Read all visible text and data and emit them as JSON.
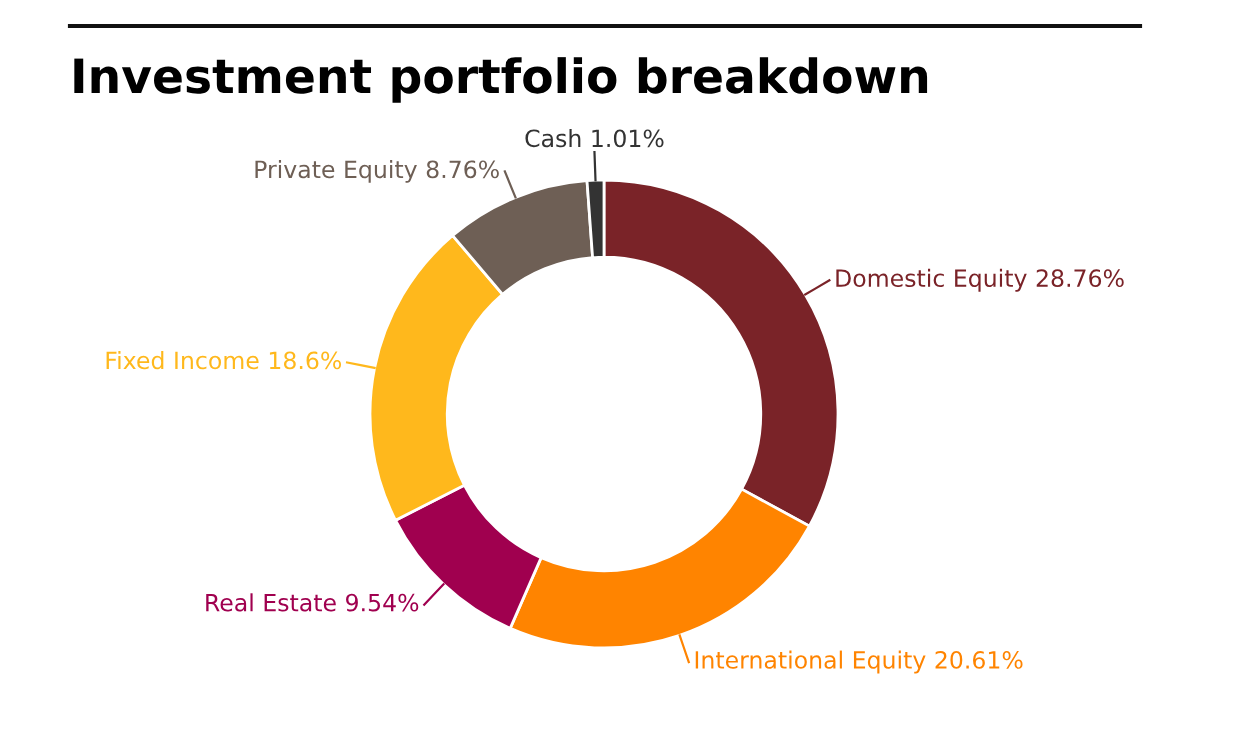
{
  "chart_data": {
    "type": "donut",
    "title": "Investment portfolio breakdown",
    "categories": [
      "Domestic Equity",
      "International Equity",
      "Real Estate",
      "Fixed Income",
      "Private Equity",
      "Cash"
    ],
    "values": [
      28.76,
      20.61,
      9.54,
      18.6,
      8.76,
      1.01
    ],
    "value_labels": [
      "28.76%",
      "20.61%",
      "9.54%",
      "18.6%",
      "8.76%",
      "1.01%"
    ],
    "colors": [
      "#7a2328",
      "#ff8400",
      "#a0004f",
      "#ffb81c",
      "#6e5f55",
      "#333333"
    ]
  }
}
